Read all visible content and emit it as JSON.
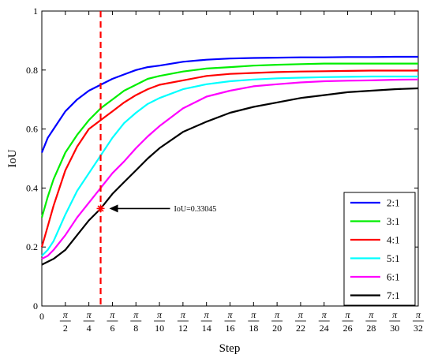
{
  "chart_data": {
    "type": "line",
    "xlabel": "Step",
    "ylabel": "IoU",
    "xlim": [
      0,
      32
    ],
    "ylim": [
      0,
      1
    ],
    "y_ticks": [
      0,
      0.2,
      0.4,
      0.6,
      0.8,
      1
    ],
    "y_tick_labels": [
      "0",
      "0.2",
      "0.4",
      "0.6",
      "0.8",
      "1"
    ],
    "x_ticks": [
      0,
      2,
      4,
      6,
      8,
      10,
      12,
      14,
      16,
      18,
      20,
      22,
      24,
      26,
      28,
      30,
      32
    ],
    "x_tick_labels": [
      {
        "num": "0",
        "den": ""
      },
      {
        "num": "π",
        "den": "2"
      },
      {
        "num": "π",
        "den": "4"
      },
      {
        "num": "π",
        "den": "6"
      },
      {
        "num": "π",
        "den": "8"
      },
      {
        "num": "π",
        "den": "10"
      },
      {
        "num": "π",
        "den": "12"
      },
      {
        "num": "π",
        "den": "14"
      },
      {
        "num": "π",
        "den": "16"
      },
      {
        "num": "π",
        "den": "18"
      },
      {
        "num": "π",
        "den": "20"
      },
      {
        "num": "π",
        "den": "22"
      },
      {
        "num": "π",
        "den": "24"
      },
      {
        "num": "π",
        "den": "26"
      },
      {
        "num": "π",
        "den": "28"
      },
      {
        "num": "π",
        "den": "30"
      },
      {
        "num": "π",
        "den": "32"
      }
    ],
    "grid": false,
    "legend_position": "bottom-right",
    "x": [
      0,
      0.5,
      1,
      2,
      3,
      4,
      5,
      6,
      7,
      8,
      9,
      10,
      12,
      14,
      16,
      18,
      20,
      22,
      24,
      26,
      28,
      30,
      32
    ],
    "series": [
      {
        "name": "2:1",
        "color": "#0000ff",
        "values": [
          0.52,
          0.57,
          0.6,
          0.66,
          0.7,
          0.73,
          0.75,
          0.77,
          0.785,
          0.8,
          0.81,
          0.815,
          0.828,
          0.835,
          0.839,
          0.841,
          0.842,
          0.843,
          0.843,
          0.844,
          0.844,
          0.845,
          0.845
        ]
      },
      {
        "name": "3:1",
        "color": "#00ee00",
        "values": [
          0.3,
          0.37,
          0.43,
          0.52,
          0.58,
          0.63,
          0.67,
          0.7,
          0.73,
          0.75,
          0.77,
          0.78,
          0.795,
          0.805,
          0.81,
          0.815,
          0.818,
          0.82,
          0.822,
          0.822,
          0.822,
          0.822,
          0.822
        ]
      },
      {
        "name": "4:1",
        "color": "#ff0000",
        "values": [
          0.2,
          0.27,
          0.34,
          0.46,
          0.54,
          0.6,
          0.63,
          0.66,
          0.69,
          0.715,
          0.735,
          0.75,
          0.765,
          0.78,
          0.787,
          0.79,
          0.793,
          0.795,
          0.796,
          0.797,
          0.798,
          0.798,
          0.798
        ]
      },
      {
        "name": "5:1",
        "color": "#00ffff",
        "values": [
          0.17,
          0.19,
          0.22,
          0.31,
          0.39,
          0.45,
          0.51,
          0.57,
          0.62,
          0.655,
          0.685,
          0.705,
          0.735,
          0.752,
          0.762,
          0.768,
          0.772,
          0.774,
          0.776,
          0.777,
          0.778,
          0.778,
          0.778
        ]
      },
      {
        "name": "6:1",
        "color": "#ff00ff",
        "values": [
          0.16,
          0.17,
          0.19,
          0.24,
          0.3,
          0.35,
          0.4,
          0.45,
          0.49,
          0.535,
          0.575,
          0.61,
          0.67,
          0.71,
          0.73,
          0.745,
          0.752,
          0.758,
          0.762,
          0.764,
          0.765,
          0.767,
          0.768
        ]
      },
      {
        "name": "7:1",
        "color": "#000000",
        "values": [
          0.14,
          0.15,
          0.16,
          0.19,
          0.24,
          0.29,
          0.33,
          0.38,
          0.42,
          0.46,
          0.5,
          0.535,
          0.59,
          0.625,
          0.655,
          0.675,
          0.69,
          0.705,
          0.715,
          0.725,
          0.73,
          0.735,
          0.738
        ]
      }
    ],
    "vline": {
      "x": 5,
      "color": "#ff0000",
      "style": "dashed"
    },
    "marker": {
      "x": 5,
      "y": 0.33045,
      "color": "#ff0000"
    },
    "annotation": {
      "text": "IoU=0.33045",
      "x": 5,
      "y": 0.33045
    }
  }
}
